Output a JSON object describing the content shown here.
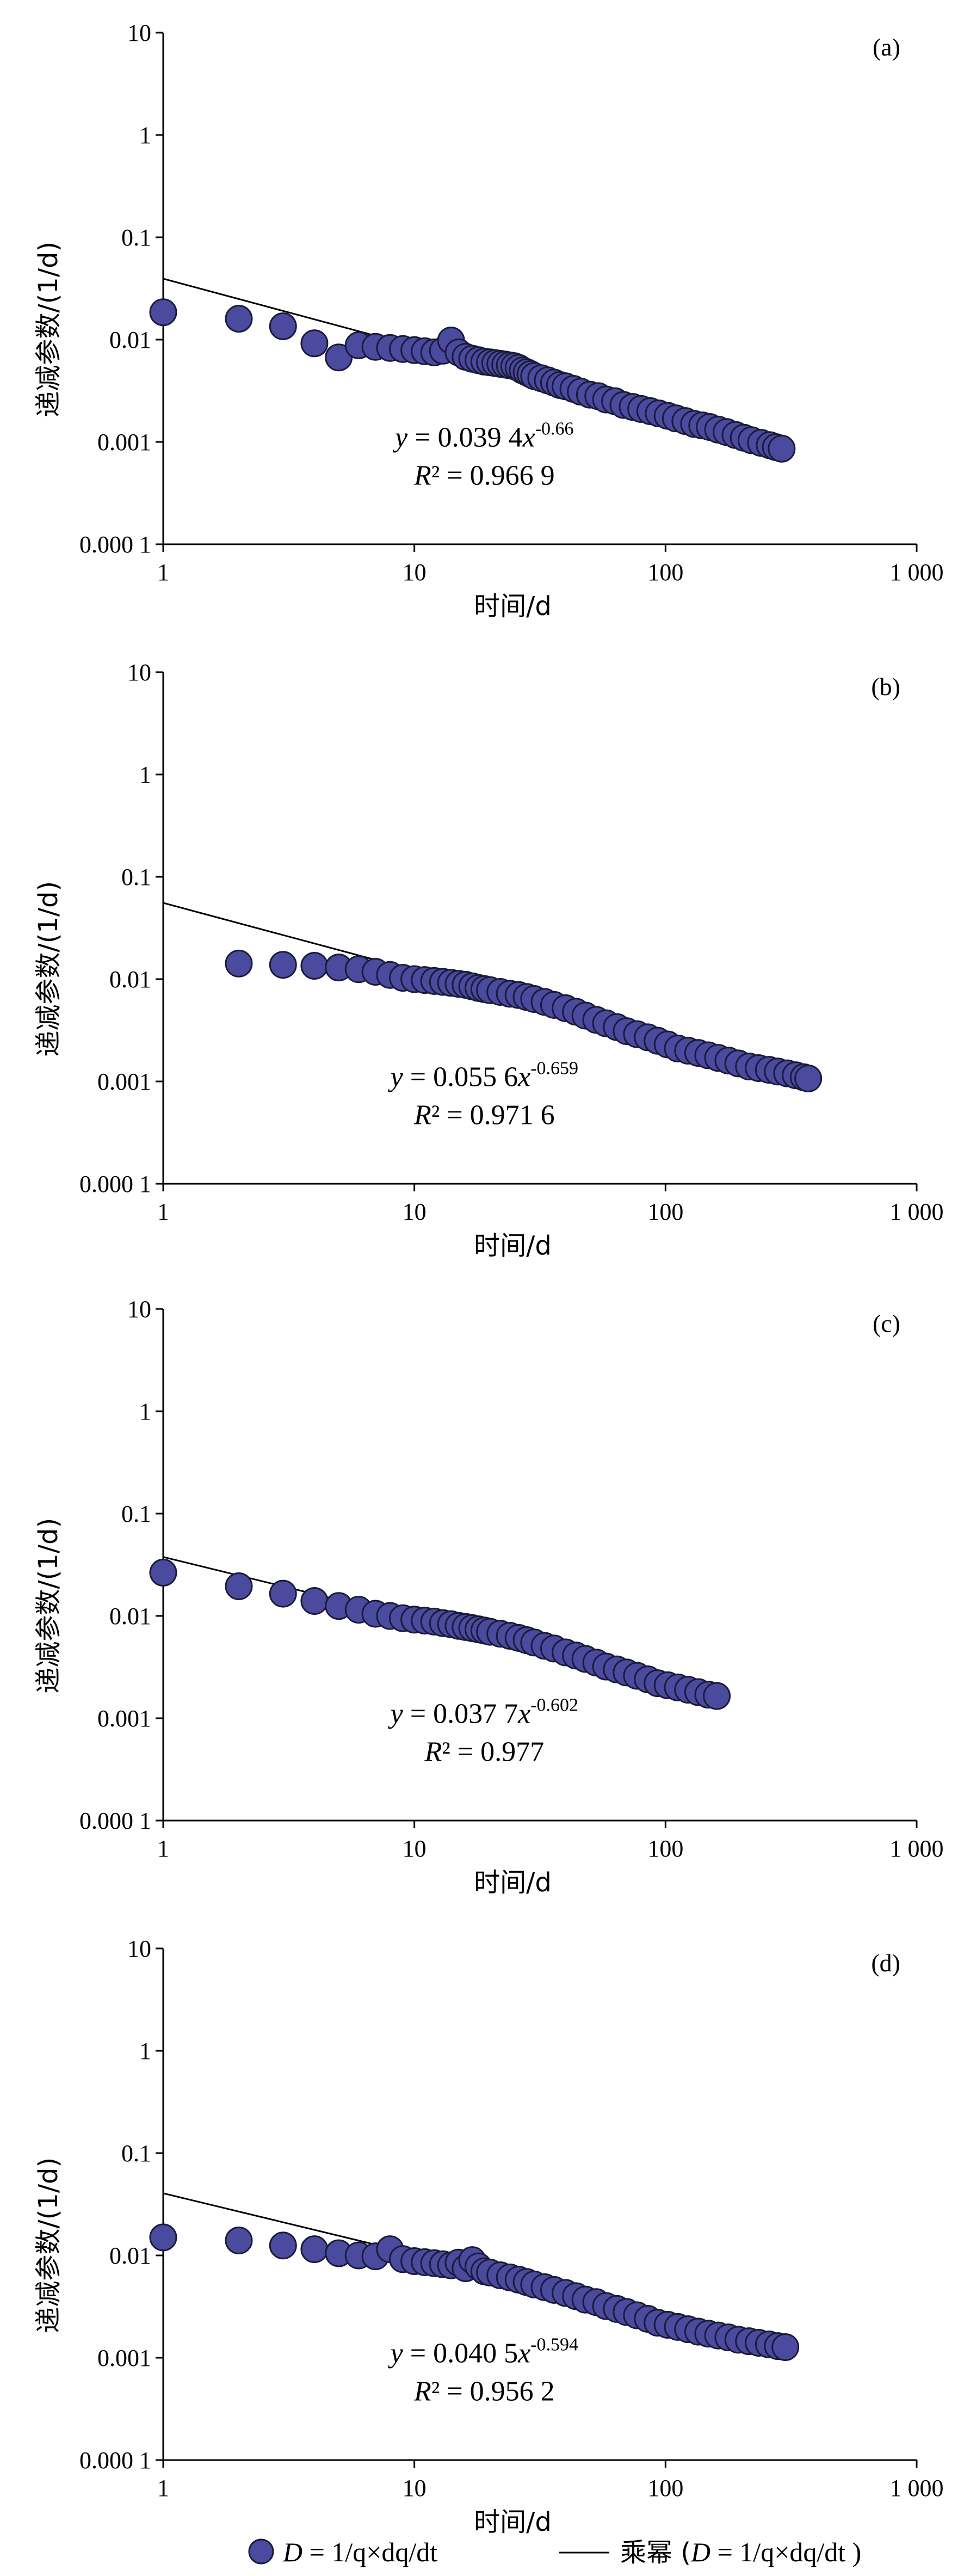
{
  "chart_data": [
    {
      "type": "scatter",
      "panel_label": "(a)",
      "xlabel": "时间/d",
      "ylabel": "递减参数/(1/d)",
      "xscale": "log",
      "yscale": "log",
      "xlim": [
        1,
        1000
      ],
      "ylim": [
        0.0001,
        10
      ],
      "x_ticks": [
        "1",
        "10",
        "100",
        "1 000"
      ],
      "y_ticks": [
        "0.000 1",
        "0.001",
        "0.01",
        "0.1",
        "1",
        "10"
      ],
      "fit": {
        "a": 0.0394,
        "b": -0.66,
        "x_range": [
          1,
          290
        ]
      },
      "equation": {
        "y_prefix": "y",
        "body": " = 0.039 4",
        "x_var": "x",
        "exponent": "-0.66",
        "r2_var": "R",
        "r2_body": "² = 0.966 9"
      },
      "series": [
        {
          "x": [
            1,
            2,
            3,
            4,
            5,
            6,
            7,
            8,
            9,
            10,
            11,
            12,
            13,
            14,
            15,
            16,
            17,
            18,
            19,
            20,
            21,
            22,
            23,
            24,
            25,
            26,
            27,
            28,
            29,
            30,
            32,
            34,
            36,
            38,
            40,
            43,
            46,
            50,
            54,
            58,
            63,
            68,
            74,
            80,
            87,
            94,
            102,
            110,
            120,
            130,
            140,
            150,
            162,
            175,
            190,
            205,
            220,
            240,
            260,
            275,
            290
          ],
          "y": [
            0.0185,
            0.016,
            0.0135,
            0.0092,
            0.0067,
            0.0088,
            0.0085,
            0.0083,
            0.0081,
            0.0079,
            0.0077,
            0.0075,
            0.0078,
            0.0098,
            0.0075,
            0.0068,
            0.0065,
            0.0063,
            0.0061,
            0.006,
            0.0059,
            0.0058,
            0.0057,
            0.0056,
            0.0055,
            0.0053,
            0.005,
            0.0048,
            0.0046,
            0.0044,
            0.0042,
            0.004,
            0.0038,
            0.0036,
            0.0035,
            0.0033,
            0.0031,
            0.0029,
            0.0028,
            0.0026,
            0.0025,
            0.0023,
            0.0022,
            0.0021,
            0.002,
            0.0019,
            0.0018,
            0.0017,
            0.0016,
            0.0015,
            0.00145,
            0.0014,
            0.00132,
            0.00125,
            0.00117,
            0.0011,
            0.00104,
            0.00098,
            0.00093,
            0.00089,
            0.00086
          ]
        }
      ]
    },
    {
      "type": "scatter",
      "panel_label": "(b)",
      "xlabel": "时间/d",
      "ylabel": "递减参数/(1/d)",
      "xscale": "log",
      "yscale": "log",
      "xlim": [
        1,
        1000
      ],
      "ylim": [
        0.0001,
        10
      ],
      "x_ticks": [
        "1",
        "10",
        "100",
        "1 000"
      ],
      "y_ticks": [
        "0.000 1",
        "0.001",
        "0.01",
        "0.1",
        "1",
        "10"
      ],
      "fit": {
        "a": 0.0556,
        "b": -0.659,
        "x_range": [
          1,
          370
        ]
      },
      "equation": {
        "y_prefix": "y",
        "body": " = 0.055 6",
        "x_var": "x",
        "exponent": "-0.659",
        "r2_var": "R",
        "r2_body": "² = 0.971 6"
      },
      "series": [
        {
          "x": [
            2,
            3,
            4,
            5,
            6,
            7,
            8,
            9,
            10,
            11,
            12,
            13,
            14,
            15,
            16,
            17,
            18,
            19,
            20,
            22,
            24,
            26,
            28,
            30,
            33,
            36,
            40,
            44,
            48,
            53,
            58,
            64,
            70,
            77,
            85,
            93,
            102,
            112,
            123,
            135,
            148,
            162,
            178,
            195,
            215,
            235,
            258,
            280,
            305,
            330,
            355,
            370
          ],
          "y": [
            0.0142,
            0.0138,
            0.0135,
            0.013,
            0.0125,
            0.0118,
            0.011,
            0.0103,
            0.01,
            0.0098,
            0.0096,
            0.0094,
            0.0092,
            0.009,
            0.0088,
            0.0085,
            0.0082,
            0.008,
            0.0078,
            0.0075,
            0.0072,
            0.007,
            0.0067,
            0.0064,
            0.006,
            0.0056,
            0.0052,
            0.0048,
            0.0044,
            0.004,
            0.0037,
            0.0034,
            0.0031,
            0.0029,
            0.0027,
            0.0025,
            0.0023,
            0.0021,
            0.002,
            0.0019,
            0.0018,
            0.0017,
            0.0016,
            0.0015,
            0.0014,
            0.00135,
            0.0013,
            0.00125,
            0.0012,
            0.00115,
            0.0011,
            0.00107
          ]
        }
      ]
    },
    {
      "type": "scatter",
      "panel_label": "(c)",
      "xlabel": "时间/d",
      "ylabel": "递减参数/(1/d)",
      "xscale": "log",
      "yscale": "log",
      "xlim": [
        1,
        1000
      ],
      "ylim": [
        0.0001,
        10
      ],
      "x_ticks": [
        "1",
        "10",
        "100",
        "1 000"
      ],
      "y_ticks": [
        "0.000 1",
        "0.001",
        "0.01",
        "0.1",
        "1",
        "10"
      ],
      "fit": {
        "a": 0.0377,
        "b": -0.602,
        "x_range": [
          1,
          160
        ]
      },
      "equation": {
        "y_prefix": "y",
        "body": " = 0.037 7",
        "x_var": "x",
        "exponent": "-0.602",
        "r2_var": "R",
        "r2_body": "² = 0.977"
      },
      "series": [
        {
          "x": [
            1,
            2,
            3,
            4,
            5,
            6,
            7,
            8,
            9,
            10,
            11,
            12,
            13,
            14,
            15,
            16,
            17,
            18,
            19,
            20,
            22,
            24,
            26,
            28,
            30,
            33,
            36,
            40,
            44,
            48,
            53,
            58,
            64,
            70,
            77,
            85,
            93,
            102,
            112,
            123,
            135,
            148,
            160
          ],
          "y": [
            0.0265,
            0.0195,
            0.0165,
            0.014,
            0.0125,
            0.0115,
            0.0105,
            0.01,
            0.0095,
            0.0092,
            0.009,
            0.0088,
            0.0085,
            0.0083,
            0.008,
            0.0078,
            0.0076,
            0.0074,
            0.0072,
            0.007,
            0.0067,
            0.0064,
            0.0061,
            0.0058,
            0.0055,
            0.0051,
            0.0048,
            0.0044,
            0.0041,
            0.0038,
            0.0035,
            0.0032,
            0.003,
            0.0028,
            0.0026,
            0.0024,
            0.0022,
            0.0021,
            0.002,
            0.0019,
            0.0018,
            0.0017,
            0.00165
          ]
        }
      ]
    },
    {
      "type": "scatter",
      "panel_label": "(d)",
      "xlabel": "时间/d",
      "ylabel": "递减参数/(1/d)",
      "xscale": "log",
      "yscale": "log",
      "xlim": [
        1,
        1000
      ],
      "ylim": [
        0.0001,
        10
      ],
      "x_ticks": [
        "1",
        "10",
        "100",
        "1 000"
      ],
      "y_ticks": [
        "0.000 1",
        "0.001",
        "0.01",
        "0.1",
        "1",
        "10"
      ],
      "fit": {
        "a": 0.0405,
        "b": -0.594,
        "x_range": [
          1,
          300
        ]
      },
      "equation": {
        "y_prefix": "y",
        "body": " = 0.040 5",
        "x_var": "x",
        "exponent": "-0.594",
        "r2_var": "R",
        "r2_body": "² = 0.956 2"
      },
      "series": [
        {
          "x": [
            1,
            2,
            3,
            4,
            5,
            6,
            7,
            8,
            9,
            10,
            11,
            12,
            13,
            14,
            15,
            16,
            17,
            18,
            19,
            20,
            22,
            24,
            26,
            28,
            30,
            33,
            36,
            40,
            44,
            48,
            53,
            58,
            64,
            70,
            77,
            85,
            93,
            102,
            112,
            123,
            135,
            148,
            162,
            178,
            195,
            215,
            235,
            258,
            280,
            300
          ],
          "y": [
            0.015,
            0.014,
            0.0125,
            0.0115,
            0.0105,
            0.01,
            0.0098,
            0.0115,
            0.0092,
            0.0088,
            0.0086,
            0.0084,
            0.0082,
            0.008,
            0.0085,
            0.0075,
            0.009,
            0.0078,
            0.007,
            0.0068,
            0.0064,
            0.0061,
            0.0058,
            0.0055,
            0.0052,
            0.0049,
            0.0046,
            0.0043,
            0.004,
            0.0037,
            0.0035,
            0.0032,
            0.003,
            0.0028,
            0.0026,
            0.0024,
            0.0022,
            0.0021,
            0.002,
            0.0019,
            0.0018,
            0.00172,
            0.00165,
            0.00158,
            0.0015,
            0.00145,
            0.0014,
            0.00135,
            0.0013,
            0.00127
          ]
        }
      ]
    }
  ],
  "legend": {
    "scatter_var": "D",
    "scatter_label": " = 1/q×dq/dt",
    "line_prefix": "乘幂 (",
    "line_var": "D",
    "line_label": " = 1/q×dq/dt )"
  },
  "colors": {
    "marker_fill": "#4a4a9e",
    "marker_stroke": "#1a1a3a",
    "line": "#000000",
    "axis": "#000000"
  }
}
